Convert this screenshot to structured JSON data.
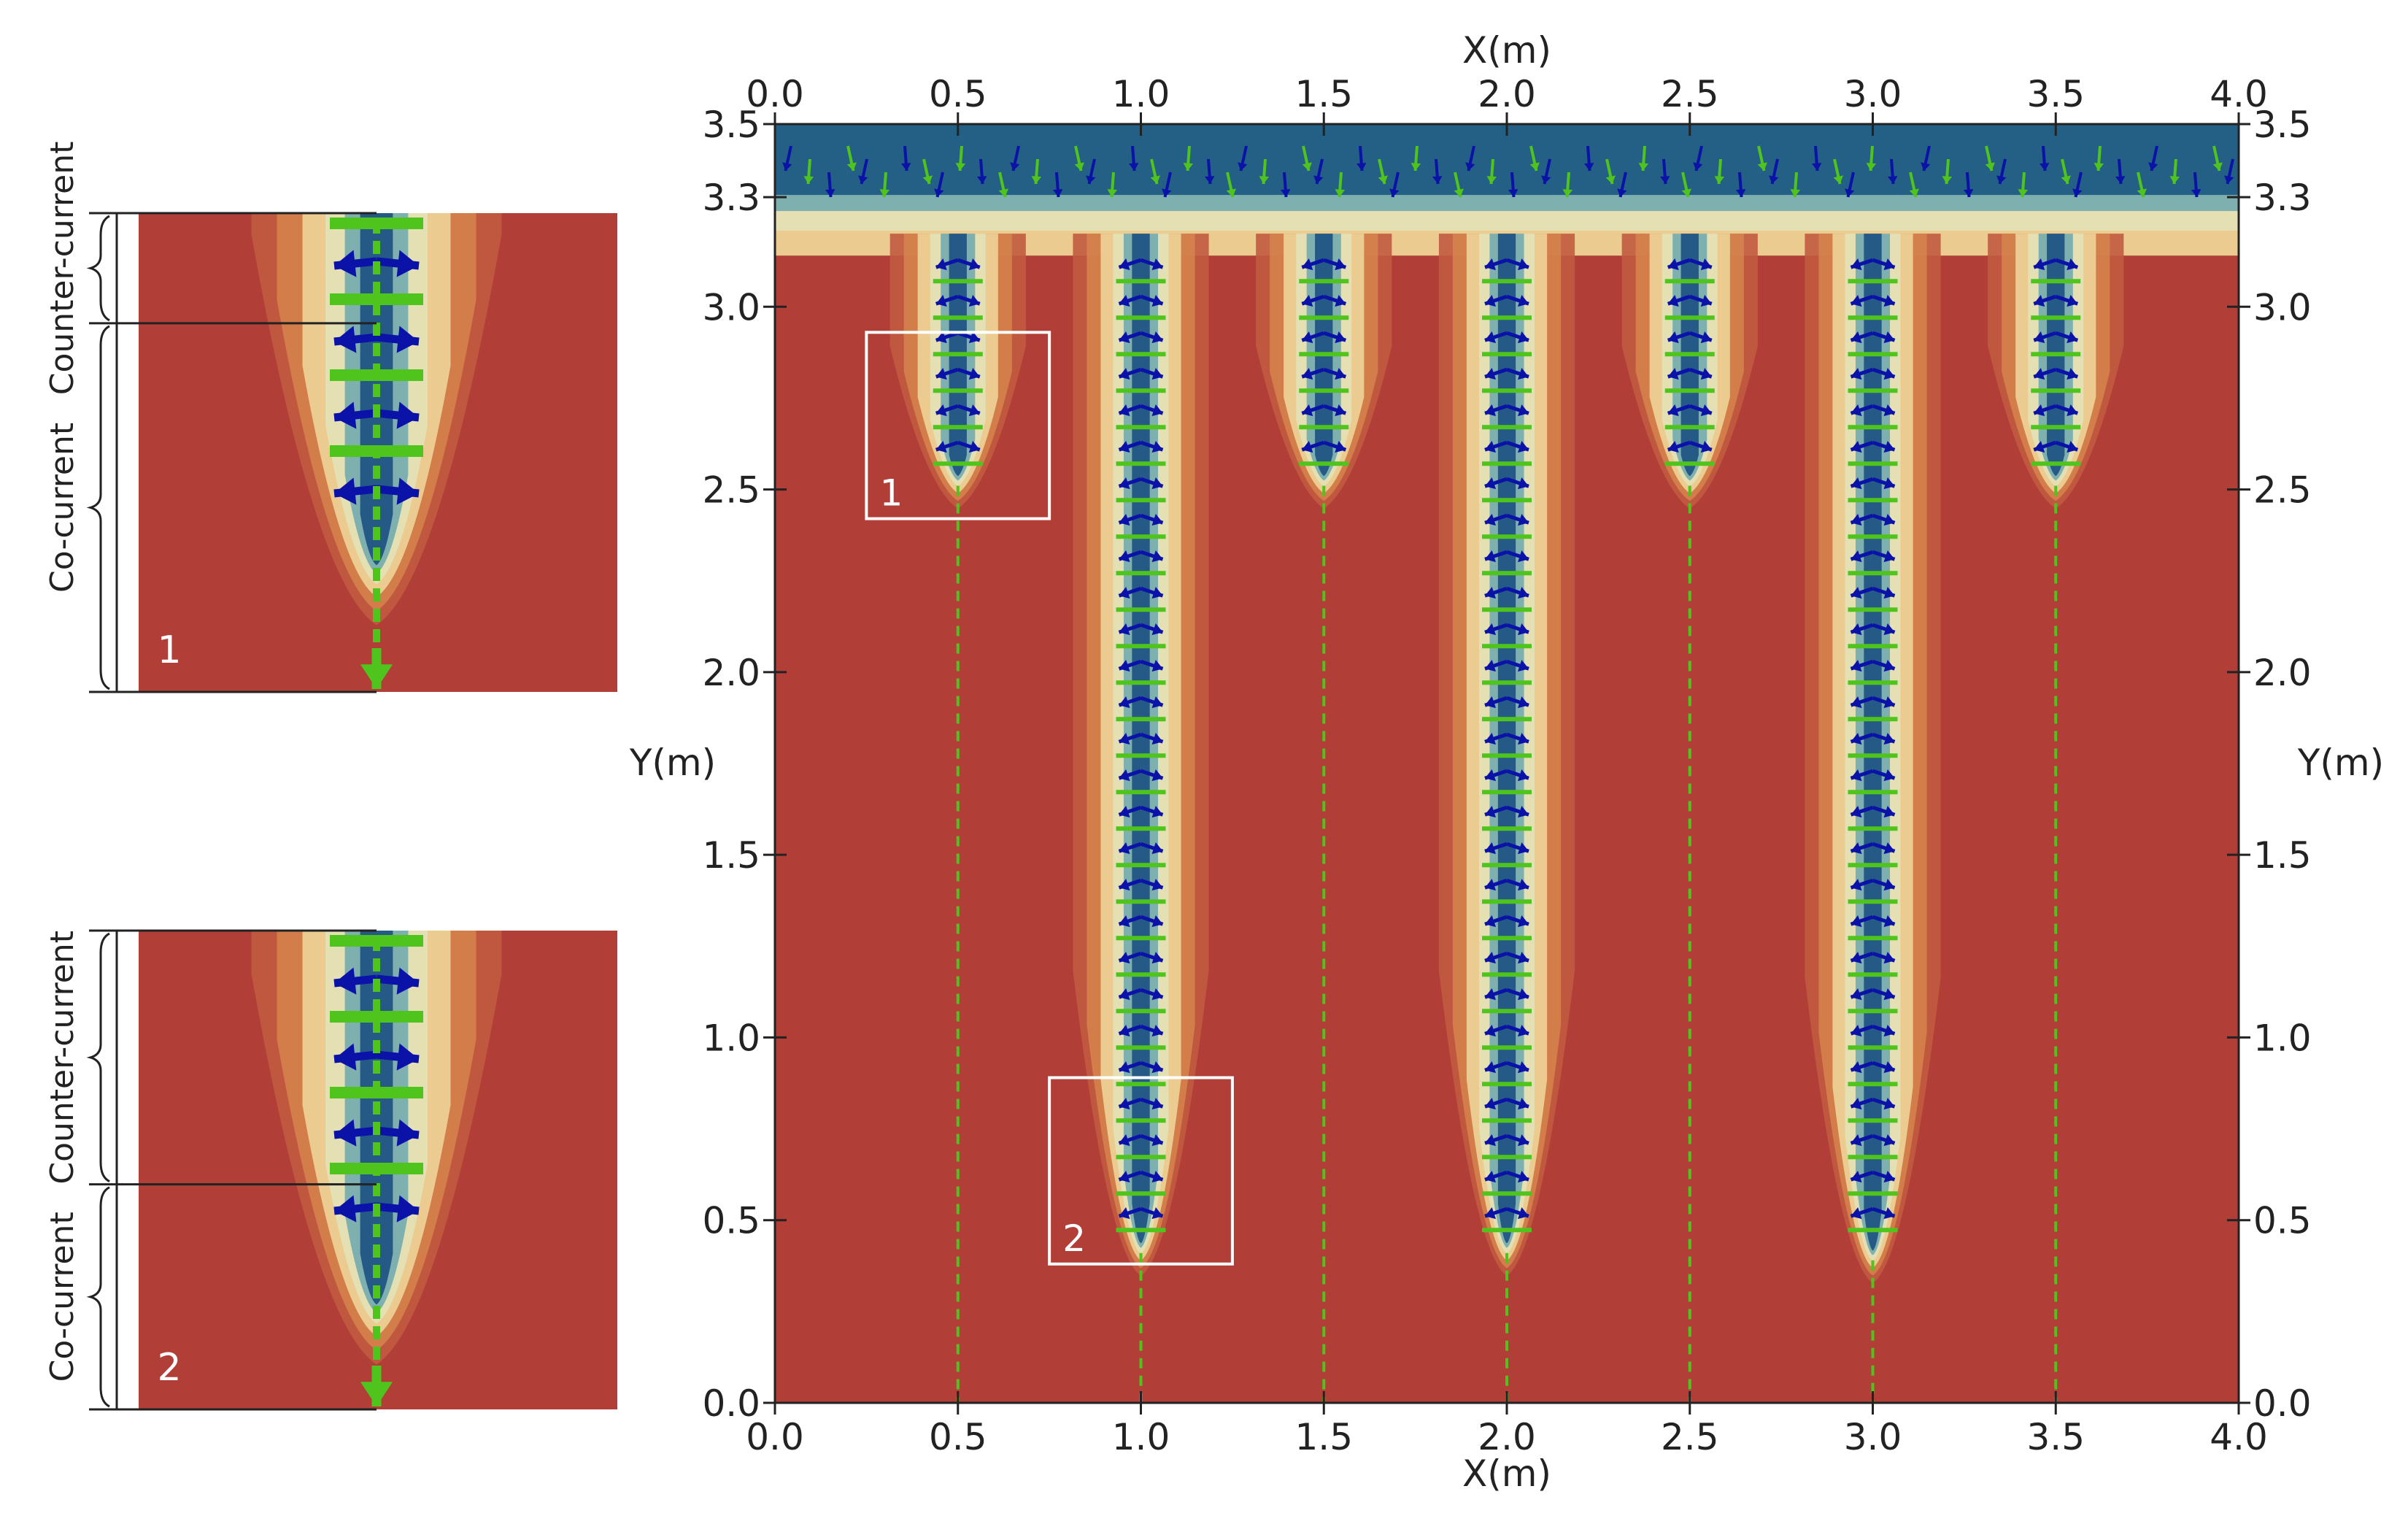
{
  "chart_data": {
    "type": "heatmap",
    "title": "",
    "main": {
      "xlabel": "X(m)",
      "ylabel": "Y(m)",
      "xlim": [
        0,
        4
      ],
      "ylim": [
        0,
        3.5
      ],
      "xticks": [
        0.0,
        0.5,
        1.0,
        1.5,
        2.0,
        2.5,
        3.0,
        3.5,
        4.0
      ],
      "xtick_labels": [
        "0.0",
        "0.5",
        "1.0",
        "1.5",
        "2.0",
        "2.5",
        "3.0",
        "3.5",
        "4.0"
      ],
      "yticks": [
        0.0,
        0.5,
        1.0,
        1.5,
        2.0,
        2.5,
        3.0,
        3.3,
        3.5
      ],
      "ytick_labels": [
        "0.0",
        "0.5",
        "1.0",
        "1.5",
        "2.0",
        "2.5",
        "3.0",
        "3.3",
        "3.5"
      ],
      "axes_on": [
        "top",
        "bottom",
        "left",
        "right"
      ],
      "grid": false,
      "top_layer": {
        "y_bottom": 3.3,
        "y_top": 3.5
      },
      "fingers": [
        {
          "x": 0.5,
          "tip_y": 2.55
        },
        {
          "x": 1.0,
          "tip_y": 0.45
        },
        {
          "x": 1.5,
          "tip_y": 2.55
        },
        {
          "x": 2.0,
          "tip_y": 0.45
        },
        {
          "x": 2.5,
          "tip_y": 2.55
        },
        {
          "x": 3.0,
          "tip_y": 0.43
        },
        {
          "x": 3.5,
          "tip_y": 2.55
        }
      ],
      "zoom_boxes": [
        {
          "label": "1",
          "x0": 0.25,
          "x1": 0.75,
          "y0": 2.42,
          "y1": 2.93
        },
        {
          "label": "2",
          "x0": 0.75,
          "x1": 1.25,
          "y0": 0.38,
          "y1": 0.89
        }
      ]
    },
    "insets": [
      {
        "label": "1",
        "annotations": [
          "Counter-current",
          "Co-current"
        ],
        "counter_fraction": 0.23
      },
      {
        "label": "2",
        "annotations": [
          "Counter-current",
          "Co-current"
        ],
        "counter_fraction": 0.53
      }
    ],
    "colors": {
      "background_field": "#b13f38",
      "layer": "#245f85",
      "ring1": "#c25b40",
      "ring2": "#d8894f",
      "ring3": "#ebcb8f",
      "ring4": "#e4e0b4",
      "ring5": "#7fb0b0",
      "core": "#245a85",
      "blue_arrow": "#0b12a8",
      "green_arrow": "#4fc41c",
      "zoom_box": "#ffffff",
      "axis": "#222222"
    }
  }
}
